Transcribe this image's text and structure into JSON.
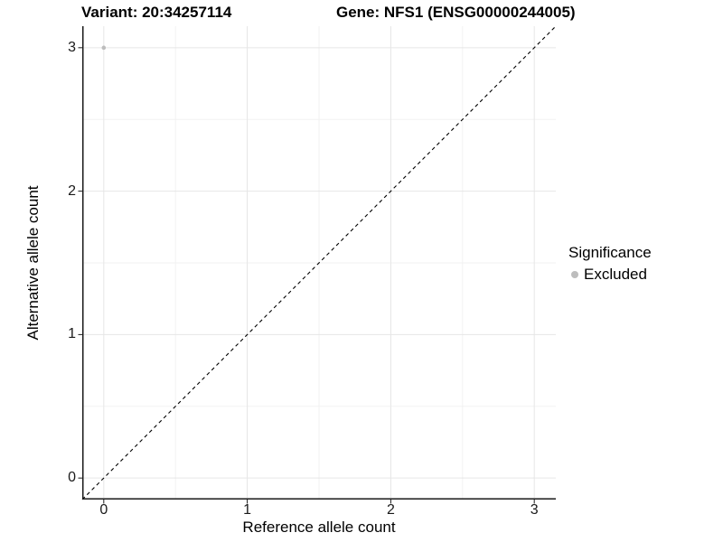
{
  "titles": {
    "variant": "Variant: 20:34257114",
    "gene": "Gene: NFS1 (ENSG00000244005)"
  },
  "axes": {
    "x": {
      "label": "Reference allele count",
      "tick_labels": [
        "0",
        "1",
        "2",
        "3"
      ],
      "tick_values": [
        0,
        1,
        2,
        3
      ]
    },
    "y": {
      "label": "Alternative allele count",
      "tick_labels": [
        "0",
        "1",
        "2",
        "3"
      ],
      "tick_values": [
        0,
        1,
        2,
        3
      ]
    }
  },
  "legend": {
    "title": "Significance",
    "items": [
      {
        "label": "Excluded",
        "color": "#bdbdbd"
      }
    ]
  },
  "colors": {
    "background": "#ffffff",
    "grid_major": "#e6e6e6",
    "grid_minor": "#f2f2f2",
    "axis_line": "#1a1a1a",
    "reference_line": "#000000",
    "point": "#bdbdbd",
    "text": "#000000"
  },
  "chart_data": {
    "type": "scatter",
    "title": "Variant: 20:34257114    Gene: NFS1 (ENSG00000244005)",
    "xlabel": "Reference allele count",
    "ylabel": "Alternative allele count",
    "xlim": [
      -0.15,
      3.15
    ],
    "ylim": [
      -0.15,
      3.15
    ],
    "grid": {
      "major": [
        0,
        1,
        2,
        3
      ],
      "minor": [
        0.5,
        1.5,
        2.5
      ],
      "on": true
    },
    "series": [
      {
        "name": "Excluded",
        "color": "#bdbdbd",
        "marker": "circle",
        "points": [
          {
            "x": 0,
            "y": 3
          }
        ]
      }
    ],
    "reference_line": {
      "type": "identity",
      "slope": 1,
      "intercept": 0,
      "style": "dashed",
      "color": "#000000"
    },
    "legend_position": "right",
    "legend_title": "Significance"
  }
}
